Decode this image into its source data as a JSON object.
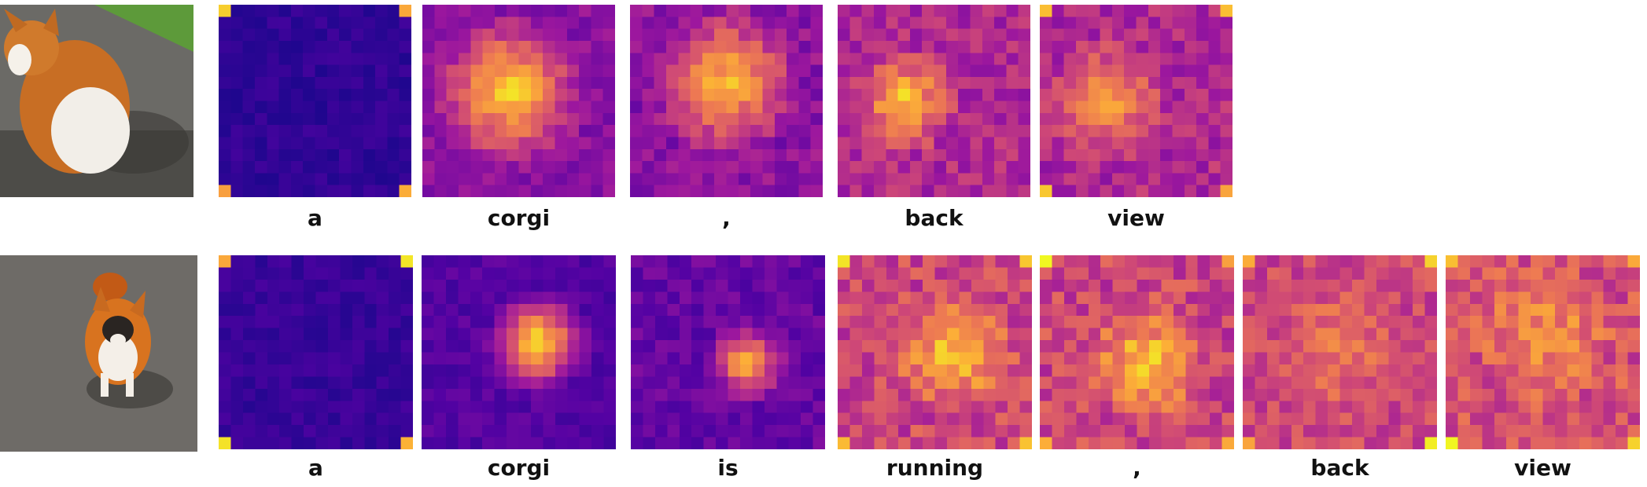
{
  "rows": [
    {
      "image": {
        "subject": "corgi back view on pavement"
      },
      "tokens": [
        "a",
        "corgi",
        ",",
        "back",
        "view"
      ]
    },
    {
      "image": {
        "subject": "corgi running toward camera"
      },
      "tokens": [
        "a",
        "corgi",
        "is",
        "running",
        ",",
        "back",
        "view"
      ]
    }
  ],
  "colormap": "plasma",
  "heatmap_grid": 16
}
